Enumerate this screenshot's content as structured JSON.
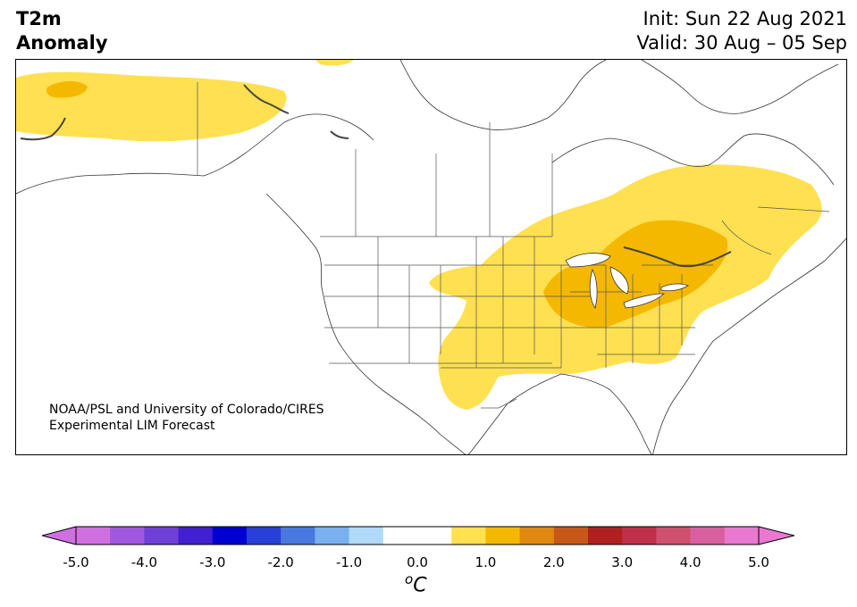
{
  "title": {
    "left_line1": "T2m",
    "left_line2": "Anomaly",
    "right_line1": "Init: Sun 22 Aug 2021",
    "right_line2": "Valid: 30 Aug – 05 Sep"
  },
  "credit": {
    "line1": "NOAA/PSL and University of Colorado/CIRES",
    "line2": "Experimental LIM Forecast"
  },
  "colorbar": {
    "ticks": [
      "-5.0",
      "-4.0",
      "-3.0",
      "-2.0",
      "-1.0",
      "0.0",
      "1.0",
      "2.0",
      "3.0",
      "4.0",
      "5.0"
    ],
    "unit_sup": "o",
    "unit_main": "C",
    "colors": [
      "#d070e0",
      "#a058e0",
      "#7040d8",
      "#4020d0",
      "#0000d0",
      "#2840d8",
      "#4878e0",
      "#78b0f0",
      "#b0daf8",
      "#ffffff",
      "#ffffff",
      "#ffe050",
      "#f5b800",
      "#e08810",
      "#c85818",
      "#b02020",
      "#c03048",
      "#d05070",
      "#d860a0",
      "#e878d0"
    ],
    "left_extend_color": "#d070e0",
    "right_extend_color": "#e878d0"
  },
  "map": {
    "anomaly_colors": {
      "warm1": "#ffe050",
      "warm2": "#f5b800"
    }
  }
}
